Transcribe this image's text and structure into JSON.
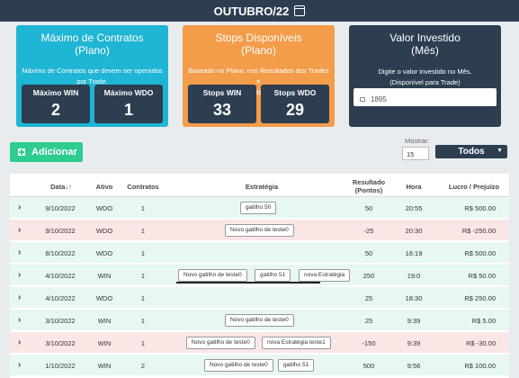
{
  "header": {
    "month": "OUTUBRO/22",
    "icon": "calendar-icon"
  },
  "cards": {
    "max_contracts": {
      "title": "Máximo de Contratos",
      "subtitle": "(Plano)",
      "description_1": "Máximo de Contratos que devem ser operados",
      "description_2": "por Trade.",
      "win_label": "Máximo WIN",
      "win_value": "2",
      "wdo_label": "Máximo WDO",
      "wdo_value": "1",
      "color": "#1fb5d4"
    },
    "stops": {
      "title": "Stops Disponíveis",
      "subtitle": "(Plano)",
      "description_1": "Baseado no Plano, nos Resultados dos Trades e",
      "description_2": "na última quantidade de contratos.",
      "win_label": "Stops WIN",
      "win_value": "33",
      "wdo_label": "Stops WDO",
      "wdo_value": "29",
      "color": "#f39c4a"
    },
    "invested": {
      "title": "Valor Investido",
      "subtitle": "(Mês)",
      "description_1": "Digite o valor investido no Mês.",
      "description_2": "(Disponível para Trade)",
      "value": "1895",
      "color": "#2c3e50"
    }
  },
  "controls": {
    "add_label": "Adicionar",
    "show_label": "Mostrar:",
    "show_count": "15",
    "filter_selected": "Todos"
  },
  "table": {
    "columns": [
      "Data↓↑",
      "Ativo",
      "Contratos",
      "Estratégia",
      "Resultado",
      "(Pontos)",
      "Hora",
      "Lucro / Prejuízo"
    ],
    "rows": [
      {
        "date": "9/10/2022",
        "asset": "WDO",
        "contracts": "1",
        "strategies": [
          "gatilho 50"
        ],
        "points": "50",
        "time": "20:55",
        "profit": "R$ 500.00",
        "status": "green"
      },
      {
        "date": "9/10/2022",
        "asset": "WDO",
        "contracts": "1",
        "strategies": [
          "Novo gatilho de teste0"
        ],
        "points": "-25",
        "time": "20:30",
        "profit": "R$ -250.00",
        "status": "red"
      },
      {
        "date": "8/10/2022",
        "asset": "WDO",
        "contracts": "1",
        "strategies": [],
        "points": "50",
        "time": "16:19",
        "profit": "R$ 500.00",
        "status": "green"
      },
      {
        "date": "4/10/2022",
        "asset": "WIN",
        "contracts": "1",
        "strategies": [
          "Novo gatilho de teste0",
          "gatilho 51",
          "nova Estratégia"
        ],
        "points": "250",
        "time": "19:0",
        "profit": "R$ 50.00",
        "status": "green"
      },
      {
        "date": "4/10/2022",
        "asset": "WDO",
        "contracts": "1",
        "strategies": [],
        "points": "25",
        "time": "18:30",
        "profit": "R$ 250.00",
        "status": "green"
      },
      {
        "date": "3/10/2022",
        "asset": "WIN",
        "contracts": "1",
        "strategies": [
          "Novo gatilho de teste0"
        ],
        "points": "25",
        "time": "9:39",
        "profit": "R$ 5.00",
        "status": "green"
      },
      {
        "date": "3/10/2022",
        "asset": "WIN",
        "contracts": "1",
        "strategies": [
          "Novo gatilho de teste0",
          "nova Estratégia teste1"
        ],
        "points": "-150",
        "time": "9:39",
        "profit": "R$ -30.00",
        "status": "red"
      },
      {
        "date": "1/10/2022",
        "asset": "WIN",
        "contracts": "2",
        "strategies": [
          "Novo gatilho de teste0",
          "gatilho 51"
        ],
        "points": "500",
        "time": "9:56",
        "profit": "R$ 100.00",
        "status": "green"
      }
    ]
  }
}
